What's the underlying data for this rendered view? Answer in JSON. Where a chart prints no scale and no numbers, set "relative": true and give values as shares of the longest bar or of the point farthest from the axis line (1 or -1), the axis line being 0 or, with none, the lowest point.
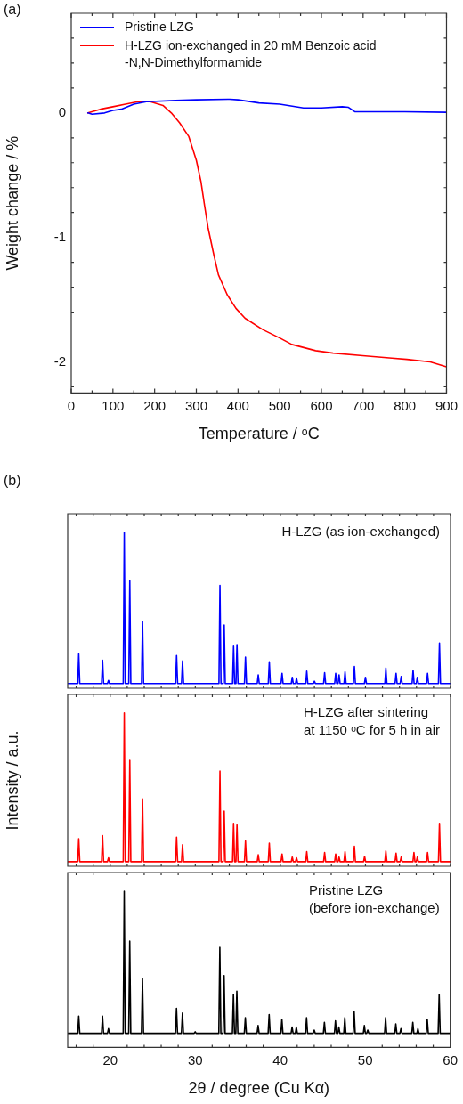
{
  "chart_data": [
    {
      "type": "line",
      "title": "(a)",
      "xlabel": "Temperature / ᵒC",
      "ylabel": "Weight change / %",
      "xlim": [
        0,
        900
      ],
      "ylim": [
        -2.25,
        0.8
      ],
      "xticks": [
        0,
        {
          "value": 50,
          "label": null
        },
        100,
        {
          "value": 150,
          "label": null
        },
        200,
        {
          "value": 250,
          "label": null
        },
        300,
        {
          "value": 350,
          "label": null
        },
        400,
        {
          "value": 450,
          "label": null
        },
        500,
        {
          "value": 550,
          "label": null
        },
        600,
        {
          "value": 650,
          "label": null
        },
        700,
        {
          "value": 750,
          "label": null
        },
        800,
        {
          "value": 850,
          "label": null
        },
        900
      ],
      "yticks": [
        {
          "value": -2.2,
          "label": null
        },
        -2,
        {
          "value": -1.8,
          "label": null
        },
        {
          "value": -1.6,
          "label": null
        },
        {
          "value": -1.4,
          "label": null
        },
        {
          "value": -1.2,
          "label": null
        },
        -1,
        {
          "value": -0.8,
          "label": null
        },
        {
          "value": -0.6,
          "label": null
        },
        {
          "value": -0.4,
          "label": null
        },
        {
          "value": -0.2,
          "label": null
        },
        0,
        {
          "value": 0.2,
          "label": null
        },
        {
          "value": 0.4,
          "label": null
        },
        {
          "value": 0.6,
          "label": null
        }
      ],
      "grid": false,
      "legend": "top left",
      "series": [
        {
          "name": "Pristine LZG",
          "color": "#0000ff",
          "x": [
            40,
            50,
            80,
            100,
            120,
            150,
            180,
            250,
            300,
            380,
            400,
            450,
            500,
            557,
            600,
            650,
            665,
            680,
            750,
            800,
            900
          ],
          "values": [
            0,
            -0.01,
            0,
            0.02,
            0.03,
            0.07,
            0.09,
            0.1,
            0.105,
            0.11,
            0.105,
            0.08,
            0.07,
            0.04,
            0.04,
            0.05,
            0.045,
            0.01,
            0.01,
            0.01,
            0.005
          ]
        },
        {
          "name": "H-LZG ion-exchanged in 20 mM Benzoic acid\n-N,N-Dimethylformamide",
          "color": "#ff0000",
          "x": [
            40,
            70,
            100,
            130,
            160,
            190,
            220,
            240,
            260,
            282,
            300,
            311,
            320,
            328,
            342,
            353,
            374,
            395,
            417,
            459,
            501,
            529,
            586,
            628,
            699,
            769,
            805,
            861,
            900
          ],
          "values": [
            0,
            0.03,
            0.05,
            0.07,
            0.09,
            0.09,
            0.06,
            0.0,
            -0.08,
            -0.19,
            -0.38,
            -0.55,
            -0.75,
            -0.92,
            -1.14,
            -1.3,
            -1.46,
            -1.57,
            -1.65,
            -1.74,
            -1.81,
            -1.86,
            -1.91,
            -1.93,
            -1.95,
            -1.97,
            -1.98,
            -2.0,
            -2.04
          ]
        }
      ]
    },
    {
      "type": "line",
      "title": "(b)",
      "relative": true,
      "xlim": [
        15,
        60
      ],
      "xticks": [
        {
          "value": 16,
          "label": null
        },
        {
          "value": 18,
          "label": null
        },
        {
          "value": 20,
          "label": null
        },
        {
          "value": 22,
          "label": null
        },
        {
          "value": 24,
          "label": null
        },
        {
          "value": 26,
          "label": null
        },
        {
          "value": 28,
          "label": null
        },
        {
          "value": 30,
          "label": null
        },
        {
          "value": 32,
          "label": null
        },
        {
          "value": 34,
          "label": null
        },
        {
          "value": 36,
          "label": null
        },
        {
          "value": 38,
          "label": null
        },
        {
          "value": 40,
          "label": null
        },
        {
          "value": 42,
          "label": null
        },
        {
          "value": 44,
          "label": null
        },
        {
          "value": 46,
          "label": null
        },
        {
          "value": 48,
          "label": null
        },
        {
          "value": 50,
          "label": null
        },
        {
          "value": 52,
          "label": null
        },
        {
          "value": 54,
          "label": null
        },
        {
          "value": 56,
          "label": null
        },
        {
          "value": 58,
          "label": null
        },
        {
          "value": 60,
          "label": null
        }
      ],
      "tick_labels": false,
      "grid": false,
      "annotations": [
        "H-LZG (as ion-exchanged)"
      ],
      "series": [
        {
          "color": "#0000ff",
          "x": [
            15,
            16.18,
            16.3,
            16.42,
            18.98,
            19.1,
            19.22,
            19.68,
            19.8,
            19.92,
            21.53,
            21.65,
            21.77,
            22.18,
            22.3,
            22.42,
            23.68,
            23.8,
            23.92,
            27.68,
            27.8,
            27.92,
            28.38,
            28.5,
            28.62,
            32.78,
            32.9,
            33.02,
            33.28,
            33.4,
            33.52,
            34.38,
            34.5,
            34.62,
            34.78,
            34.9,
            35.02,
            35.78,
            35.9,
            36.02,
            37.28,
            37.4,
            37.52,
            38.58,
            38.7,
            38.82,
            40.08,
            40.2,
            40.32,
            41.28,
            41.4,
            41.52,
            41.78,
            41.9,
            42.02,
            42.98,
            43.1,
            43.22,
            43.88,
            44.0,
            44.12,
            45.08,
            45.2,
            45.32,
            46.38,
            46.5,
            46.62,
            46.78,
            46.9,
            47.02,
            47.48,
            47.6,
            47.72,
            48.58,
            48.7,
            48.82,
            49.88,
            50.0,
            50.12,
            52.28,
            52.4,
            52.52,
            53.48,
            53.6,
            53.72,
            54.08,
            54.2,
            54.32,
            55.48,
            55.6,
            55.72,
            55.98,
            56.1,
            56.22,
            57.18,
            57.3,
            57.42,
            58.58,
            58.7,
            58.82,
            60
          ],
          "values": [
            0.03,
            0.03,
            0.22,
            0.03,
            0.03,
            0.18,
            0.03,
            0.03,
            0.05,
            0.03,
            0.03,
            1.0,
            0.03,
            0.03,
            0.69,
            0.03,
            0.03,
            0.43,
            0.03,
            0.03,
            0.21,
            0.03,
            0.03,
            0.175,
            0.03,
            0.03,
            0.66,
            0.03,
            0.03,
            0.405,
            0.03,
            0.03,
            0.27,
            0.03,
            0.03,
            0.28,
            0.03,
            0.03,
            0.2,
            0.03,
            0.03,
            0.085,
            0.03,
            0.03,
            0.17,
            0.03,
            0.03,
            0.095,
            0.03,
            0.03,
            0.07,
            0.03,
            0.03,
            0.065,
            0.03,
            0.03,
            0.11,
            0.03,
            0.03,
            0.045,
            0.03,
            0.03,
            0.1,
            0.03,
            0.03,
            0.095,
            0.03,
            0.03,
            0.085,
            0.03,
            0.03,
            0.105,
            0.03,
            0.03,
            0.14,
            0.03,
            0.03,
            0.07,
            0.03,
            0.03,
            0.13,
            0.03,
            0.03,
            0.095,
            0.03,
            0.03,
            0.075,
            0.03,
            0.03,
            0.115,
            0.03,
            0.03,
            0.07,
            0.03,
            0.03,
            0.095,
            0.03,
            0.03,
            0.29,
            0.03,
            0.03
          ]
        }
      ]
    },
    {
      "type": "line",
      "ylabel": "Intensity / a.u.",
      "relative": true,
      "xlim": [
        15,
        60
      ],
      "xticks": [
        {
          "value": 16,
          "label": null
        },
        {
          "value": 18,
          "label": null
        },
        {
          "value": 20,
          "label": null
        },
        {
          "value": 22,
          "label": null
        },
        {
          "value": 24,
          "label": null
        },
        {
          "value": 26,
          "label": null
        },
        {
          "value": 28,
          "label": null
        },
        {
          "value": 30,
          "label": null
        },
        {
          "value": 32,
          "label": null
        },
        {
          "value": 34,
          "label": null
        },
        {
          "value": 36,
          "label": null
        },
        {
          "value": 38,
          "label": null
        },
        {
          "value": 40,
          "label": null
        },
        {
          "value": 42,
          "label": null
        },
        {
          "value": 44,
          "label": null
        },
        {
          "value": 46,
          "label": null
        },
        {
          "value": 48,
          "label": null
        },
        {
          "value": 50,
          "label": null
        },
        {
          "value": 52,
          "label": null
        },
        {
          "value": 54,
          "label": null
        },
        {
          "value": 56,
          "label": null
        },
        {
          "value": 58,
          "label": null
        },
        {
          "value": 60,
          "label": null
        }
      ],
      "tick_labels": false,
      "grid": false,
      "annotations": [
        "H-LZG after sintering\nat 1150 ᵒC for 5 h in air"
      ],
      "series": [
        {
          "color": "#ff0000",
          "x": [
            15,
            16.18,
            16.3,
            16.42,
            18.98,
            19.1,
            19.22,
            19.68,
            19.8,
            19.92,
            21.53,
            21.65,
            21.77,
            22.18,
            22.3,
            22.42,
            23.68,
            23.8,
            23.92,
            27.68,
            27.8,
            27.92,
            28.38,
            28.5,
            28.62,
            32.78,
            32.9,
            33.02,
            33.28,
            33.4,
            33.52,
            34.38,
            34.5,
            34.62,
            34.78,
            34.9,
            35.02,
            35.78,
            35.9,
            36.02,
            37.28,
            37.4,
            37.52,
            38.58,
            38.7,
            38.82,
            40.08,
            40.2,
            40.32,
            41.28,
            41.4,
            41.52,
            41.78,
            41.9,
            42.02,
            42.98,
            43.1,
            43.22,
            45.08,
            45.2,
            45.32,
            46.38,
            46.5,
            46.62,
            46.78,
            46.9,
            47.02,
            47.48,
            47.6,
            47.72,
            48.58,
            48.7,
            48.82,
            49.78,
            49.9,
            50.02,
            52.28,
            52.4,
            52.52,
            53.48,
            53.6,
            53.72,
            54.08,
            54.2,
            54.32,
            55.58,
            55.7,
            55.82,
            55.98,
            56.1,
            56.22,
            57.18,
            57.3,
            57.42,
            58.58,
            58.7,
            58.82,
            60
          ],
          "values": [
            0.03,
            0.03,
            0.18,
            0.03,
            0.03,
            0.2,
            0.03,
            0.03,
            0.055,
            0.03,
            0.03,
            1.0,
            0.03,
            0.03,
            0.69,
            0.03,
            0.03,
            0.44,
            0.03,
            0.03,
            0.19,
            0.03,
            0.03,
            0.14,
            0.03,
            0.03,
            0.62,
            0.03,
            0.03,
            0.36,
            0.03,
            0.03,
            0.28,
            0.03,
            0.03,
            0.27,
            0.03,
            0.03,
            0.165,
            0.03,
            0.03,
            0.075,
            0.03,
            0.03,
            0.15,
            0.03,
            0.03,
            0.08,
            0.03,
            0.03,
            0.06,
            0.03,
            0.03,
            0.055,
            0.03,
            0.03,
            0.095,
            0.03,
            0.03,
            0.09,
            0.03,
            0.03,
            0.08,
            0.03,
            0.03,
            0.06,
            0.03,
            0.03,
            0.095,
            0.03,
            0.03,
            0.13,
            0.03,
            0.03,
            0.065,
            0.03,
            0.03,
            0.1,
            0.03,
            0.03,
            0.085,
            0.03,
            0.03,
            0.06,
            0.03,
            0.03,
            0.09,
            0.03,
            0.03,
            0.06,
            0.03,
            0.03,
            0.09,
            0.03,
            0.03,
            0.28,
            0.03,
            0.03
          ]
        }
      ]
    },
    {
      "type": "line",
      "xlabel": "2θ / degree (Cu Kα)",
      "relative": true,
      "xlim": [
        15,
        60
      ],
      "xticks": [
        {
          "value": 16,
          "label": null
        },
        {
          "value": 18,
          "label": null
        },
        20,
        {
          "value": 22,
          "label": null
        },
        {
          "value": 24,
          "label": null
        },
        {
          "value": 26,
          "label": null
        },
        {
          "value": 28,
          "label": null
        },
        30,
        {
          "value": 32,
          "label": null
        },
        {
          "value": 34,
          "label": null
        },
        {
          "value": 36,
          "label": null
        },
        {
          "value": 38,
          "label": null
        },
        40,
        {
          "value": 42,
          "label": null
        },
        {
          "value": 44,
          "label": null
        },
        {
          "value": 46,
          "label": null
        },
        {
          "value": 48,
          "label": null
        },
        50,
        {
          "value": 52,
          "label": null
        },
        {
          "value": 54,
          "label": null
        },
        {
          "value": 56,
          "label": null
        },
        {
          "value": 58,
          "label": null
        },
        60
      ],
      "tick_labels": "x",
      "grid": false,
      "annotations": [
        "Pristine LZG\n(before ion-exchange)"
      ],
      "series": [
        {
          "color": "#000000",
          "x": [
            15,
            16.18,
            16.3,
            16.42,
            18.98,
            19.1,
            19.22,
            19.68,
            19.8,
            19.92,
            21.53,
            21.65,
            21.77,
            22.18,
            22.3,
            22.42,
            23.68,
            23.8,
            23.92,
            27.68,
            27.8,
            27.92,
            28.38,
            28.5,
            28.62,
            29.88,
            30.0,
            30.12,
            32.78,
            32.9,
            33.02,
            33.28,
            33.4,
            33.52,
            34.38,
            34.5,
            34.62,
            34.78,
            34.9,
            35.02,
            35.78,
            35.9,
            36.02,
            37.28,
            37.4,
            37.52,
            38.58,
            38.7,
            38.82,
            40.08,
            40.2,
            40.32,
            41.28,
            41.4,
            41.52,
            41.78,
            41.9,
            42.02,
            42.98,
            43.1,
            43.22,
            43.88,
            44.0,
            44.12,
            45.08,
            45.2,
            45.32,
            46.38,
            46.5,
            46.62,
            46.78,
            46.9,
            47.02,
            47.48,
            47.6,
            47.72,
            48.58,
            48.7,
            48.82,
            49.78,
            49.9,
            50.02,
            50.18,
            50.3,
            50.42,
            52.28,
            52.4,
            52.52,
            53.48,
            53.6,
            53.72,
            54.08,
            54.2,
            54.32,
            55.48,
            55.6,
            55.72,
            56.08,
            56.2,
            56.32,
            57.18,
            57.3,
            57.42,
            58.58,
            58.7,
            58.82,
            60
          ],
          "values": [
            0.09,
            0.09,
            0.2,
            0.09,
            0.09,
            0.2,
            0.09,
            0.09,
            0.12,
            0.09,
            0.09,
            1.0,
            0.09,
            0.09,
            0.68,
            0.09,
            0.09,
            0.44,
            0.09,
            0.09,
            0.25,
            0.09,
            0.09,
            0.22,
            0.09,
            0.09,
            0.1,
            0.09,
            0.09,
            0.64,
            0.09,
            0.09,
            0.46,
            0.09,
            0.09,
            0.34,
            0.09,
            0.09,
            0.36,
            0.09,
            0.09,
            0.19,
            0.09,
            0.09,
            0.14,
            0.09,
            0.09,
            0.21,
            0.09,
            0.09,
            0.18,
            0.09,
            0.09,
            0.13,
            0.09,
            0.09,
            0.13,
            0.09,
            0.09,
            0.19,
            0.09,
            0.09,
            0.11,
            0.09,
            0.09,
            0.16,
            0.09,
            0.09,
            0.17,
            0.09,
            0.09,
            0.13,
            0.09,
            0.09,
            0.19,
            0.09,
            0.09,
            0.23,
            0.09,
            0.09,
            0.14,
            0.09,
            0.09,
            0.11,
            0.09,
            0.09,
            0.19,
            0.09,
            0.09,
            0.15,
            0.09,
            0.09,
            0.12,
            0.09,
            0.09,
            0.16,
            0.09,
            0.09,
            0.12,
            0.09,
            0.09,
            0.18,
            0.09,
            0.09,
            0.34,
            0.09,
            0.09
          ]
        }
      ]
    }
  ]
}
